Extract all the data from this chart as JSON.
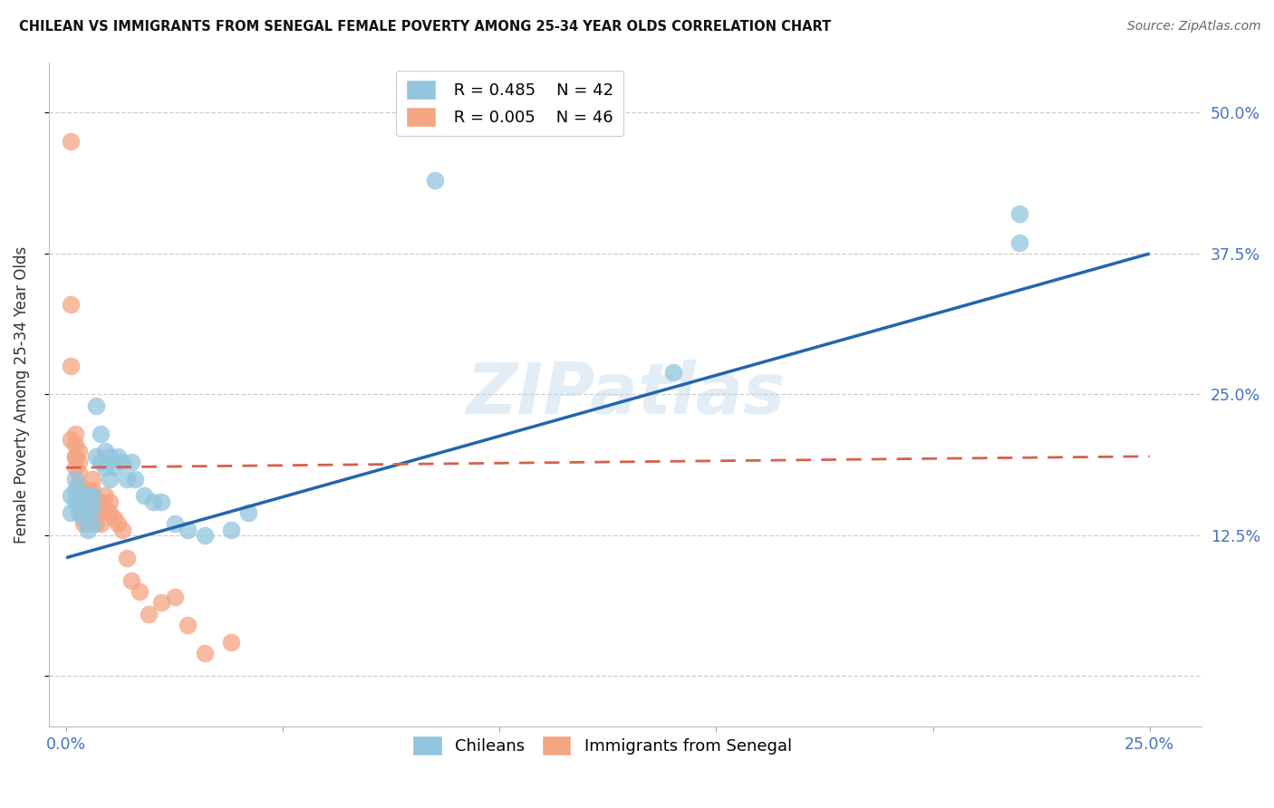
{
  "title": "CHILEAN VS IMMIGRANTS FROM SENEGAL FEMALE POVERTY AMONG 25-34 YEAR OLDS CORRELATION CHART",
  "source": "Source: ZipAtlas.com",
  "ylabel_label": "Female Poverty Among 25-34 Year Olds",
  "x_tick_positions": [
    0.0,
    0.05,
    0.1,
    0.15,
    0.2,
    0.25
  ],
  "x_tick_labels": [
    "0.0%",
    "",
    "",
    "",
    "",
    "25.0%"
  ],
  "y_tick_positions": [
    0.0,
    0.125,
    0.25,
    0.375,
    0.5
  ],
  "y_tick_labels": [
    "",
    "12.5%",
    "25.0%",
    "37.5%",
    "50.0%"
  ],
  "xlim": [
    -0.004,
    0.262
  ],
  "ylim": [
    -0.045,
    0.545
  ],
  "legend_r1": "R = 0.485",
  "legend_n1": "N = 42",
  "legend_r2": "R = 0.005",
  "legend_n2": "N = 46",
  "color_blue": "#92c5de",
  "color_pink": "#f4a582",
  "color_blue_line": "#2166ac",
  "color_pink_line": "#d6604d",
  "watermark": "ZIPatlas",
  "blue_line_x": [
    0.0,
    0.25
  ],
  "blue_line_y": [
    0.105,
    0.375
  ],
  "pink_line_x": [
    0.0,
    0.25
  ],
  "pink_line_y": [
    0.185,
    0.195
  ],
  "blue_x": [
    0.001,
    0.001,
    0.002,
    0.002,
    0.002,
    0.003,
    0.003,
    0.003,
    0.004,
    0.004,
    0.005,
    0.005,
    0.005,
    0.006,
    0.006,
    0.006,
    0.007,
    0.007,
    0.008,
    0.008,
    0.009,
    0.009,
    0.01,
    0.01,
    0.011,
    0.012,
    0.013,
    0.014,
    0.015,
    0.016,
    0.018,
    0.02,
    0.022,
    0.025,
    0.028,
    0.032,
    0.038,
    0.042,
    0.085,
    0.14,
    0.22,
    0.22
  ],
  "blue_y": [
    0.145,
    0.16,
    0.155,
    0.165,
    0.175,
    0.145,
    0.155,
    0.165,
    0.14,
    0.155,
    0.13,
    0.145,
    0.16,
    0.135,
    0.15,
    0.16,
    0.24,
    0.195,
    0.19,
    0.215,
    0.185,
    0.2,
    0.175,
    0.195,
    0.185,
    0.195,
    0.19,
    0.175,
    0.19,
    0.175,
    0.16,
    0.155,
    0.155,
    0.135,
    0.13,
    0.125,
    0.13,
    0.145,
    0.44,
    0.27,
    0.41,
    0.385
  ],
  "pink_x": [
    0.001,
    0.001,
    0.001,
    0.002,
    0.002,
    0.002,
    0.002,
    0.003,
    0.003,
    0.003,
    0.003,
    0.004,
    0.004,
    0.004,
    0.004,
    0.005,
    0.005,
    0.005,
    0.005,
    0.006,
    0.006,
    0.006,
    0.007,
    0.007,
    0.007,
    0.008,
    0.008,
    0.008,
    0.009,
    0.009,
    0.01,
    0.01,
    0.011,
    0.012,
    0.013,
    0.014,
    0.015,
    0.017,
    0.019,
    0.022,
    0.025,
    0.028,
    0.032,
    0.038,
    0.001,
    0.002
  ],
  "pink_y": [
    0.475,
    0.33,
    0.275,
    0.215,
    0.205,
    0.195,
    0.185,
    0.2,
    0.19,
    0.18,
    0.17,
    0.165,
    0.155,
    0.145,
    0.135,
    0.165,
    0.155,
    0.145,
    0.135,
    0.175,
    0.165,
    0.155,
    0.155,
    0.145,
    0.135,
    0.155,
    0.145,
    0.135,
    0.16,
    0.15,
    0.155,
    0.145,
    0.14,
    0.135,
    0.13,
    0.105,
    0.085,
    0.075,
    0.055,
    0.065,
    0.07,
    0.045,
    0.02,
    0.03,
    0.21,
    0.195
  ]
}
